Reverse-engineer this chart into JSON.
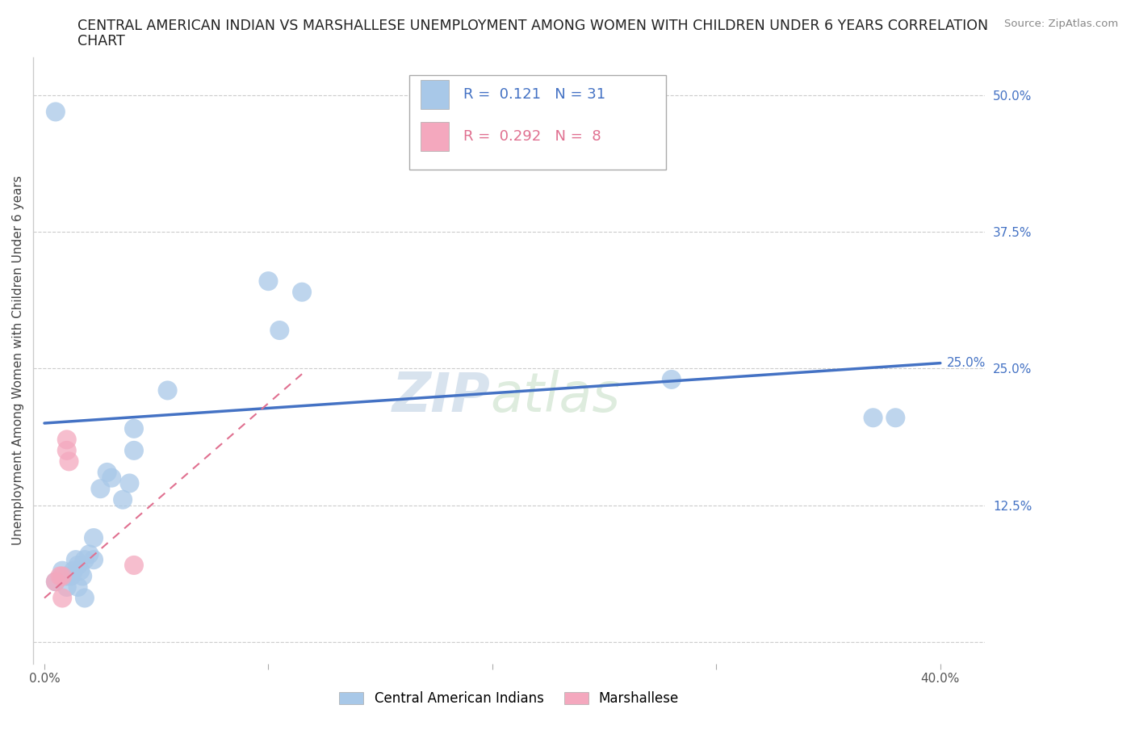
{
  "title_line1": "CENTRAL AMERICAN INDIAN VS MARSHALLESE UNEMPLOYMENT AMONG WOMEN WITH CHILDREN UNDER 6 YEARS CORRELATION",
  "title_line2": "CHART",
  "source": "Source: ZipAtlas.com",
  "ylabel": "Unemployment Among Women with Children Under 6 years",
  "xlim": [
    -0.005,
    0.42
  ],
  "ylim": [
    -0.02,
    0.535
  ],
  "xticks": [
    0.0,
    0.1,
    0.2,
    0.3,
    0.4
  ],
  "xtick_labels": [
    "0.0%",
    "",
    "",
    "",
    "40.0%"
  ],
  "yticks": [
    0.0,
    0.125,
    0.25,
    0.375,
    0.5
  ],
  "ytick_labels": [
    "",
    "12.5%",
    "25.0%",
    "37.5%",
    "50.0%"
  ],
  "grid_color": "#cccccc",
  "background_color": "#ffffff",
  "watermark_zip": "ZIP",
  "watermark_atlas": "atlas",
  "blue_color": "#a8c8e8",
  "pink_color": "#f4a8be",
  "blue_line_color": "#4472c4",
  "pink_line_color": "#e07090",
  "blue_points_x": [
    0.005,
    0.008,
    0.01,
    0.01,
    0.012,
    0.013,
    0.014,
    0.015,
    0.015,
    0.016,
    0.017,
    0.018,
    0.018,
    0.02,
    0.022,
    0.022,
    0.025,
    0.028,
    0.03,
    0.035,
    0.038,
    0.04,
    0.04,
    0.055,
    0.1,
    0.105,
    0.115,
    0.28,
    0.37,
    0.38,
    0.005
  ],
  "blue_points_y": [
    0.055,
    0.065,
    0.05,
    0.06,
    0.06,
    0.065,
    0.075,
    0.05,
    0.07,
    0.065,
    0.06,
    0.04,
    0.075,
    0.08,
    0.095,
    0.075,
    0.14,
    0.155,
    0.15,
    0.13,
    0.145,
    0.195,
    0.175,
    0.23,
    0.33,
    0.285,
    0.32,
    0.24,
    0.205,
    0.205,
    0.485
  ],
  "pink_points_x": [
    0.005,
    0.007,
    0.008,
    0.008,
    0.01,
    0.01,
    0.011,
    0.04
  ],
  "pink_points_y": [
    0.055,
    0.06,
    0.06,
    0.04,
    0.175,
    0.185,
    0.165,
    0.07
  ],
  "blue_trend_x": [
    0.0,
    0.4
  ],
  "blue_trend_y": [
    0.2,
    0.255
  ],
  "pink_trend_x": [
    0.0,
    0.115
  ],
  "pink_trend_y": [
    0.04,
    0.245
  ],
  "legend_labels": [
    "Central American Indians",
    "Marshallese"
  ],
  "r_text_1": "R =  0.121   N = 31",
  "r_text_2": "R =  0.292   N =  8",
  "r_color_1": "#4472c4",
  "r_color_2": "#e07090"
}
